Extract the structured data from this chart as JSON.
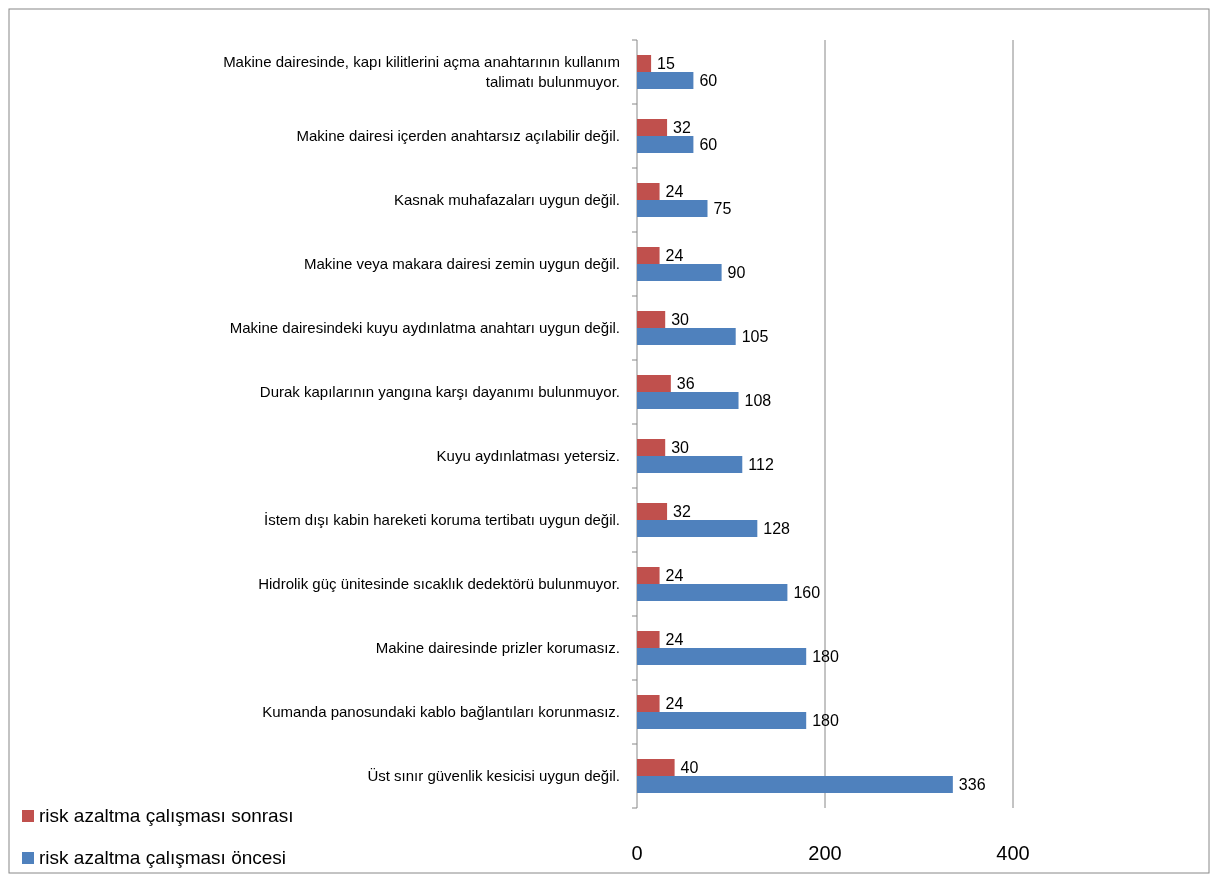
{
  "chart_data": {
    "type": "bar",
    "orientation": "horizontal",
    "categories": [
      "Makine dairesinde, kapı kilitlerini açma anahtarının kullanım talimatı bulunmuyor.",
      "Makine dairesi içerden anahtarsız açılabilir değil.",
      "Kasnak muhafazaları uygun değil.",
      "Makine veya makara dairesi zemin uygun değil.",
      "Makine dairesindeki kuyu aydınlatma anahtarı uygun değil.",
      "Durak kapılarının yangına karşı dayanımı bulunmuyor.",
      "Kuyu aydınlatması yetersiz.",
      "İstem dışı kabin hareketi koruma tertibatı uygun değil.",
      "Hidrolik güç ünitesinde sıcaklık dedektörü bulunmuyor.",
      "Makine dairesinde prizler korumasız.",
      "Kumanda panosundaki kablo bağlantıları korunmasız.",
      "Üst sınır güvenlik kesicisi uygun değil."
    ],
    "series": [
      {
        "name": "risk azaltma çalışması sonrası",
        "color": "#c0504d",
        "values": [
          15,
          32,
          24,
          24,
          30,
          36,
          30,
          32,
          24,
          24,
          24,
          40
        ]
      },
      {
        "name": "risk azaltma çalışması öncesi",
        "color": "#4f81bd",
        "values": [
          60,
          60,
          75,
          90,
          105,
          108,
          112,
          128,
          160,
          180,
          180,
          336
        ]
      }
    ],
    "xlim": [
      0,
      400
    ],
    "xticks": [
      0,
      200,
      400
    ],
    "grid": "x",
    "legend": "bottom left",
    "data_labels": true
  }
}
